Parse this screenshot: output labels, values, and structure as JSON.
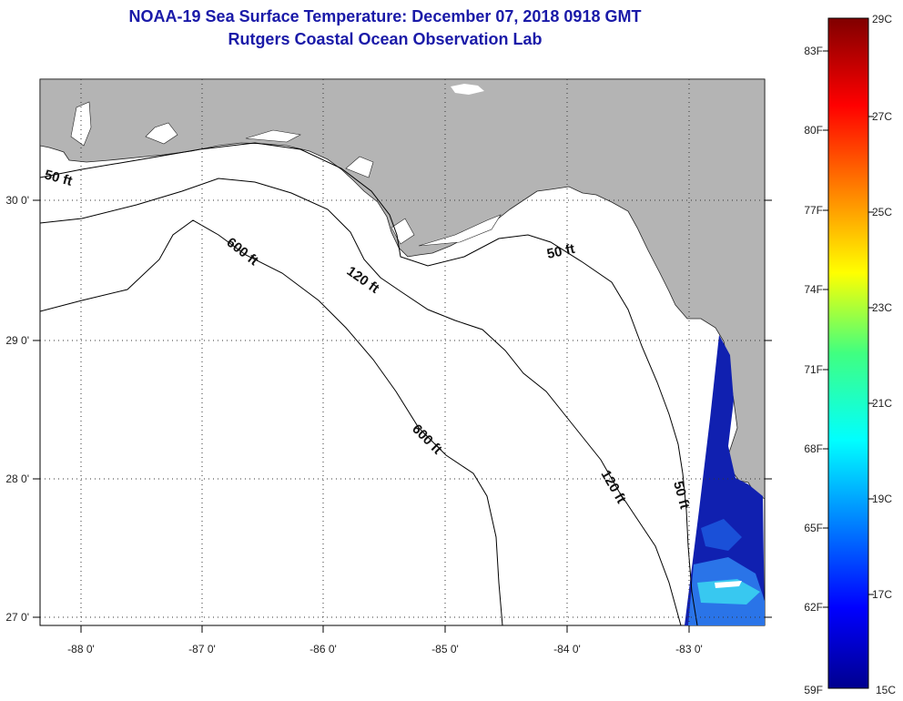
{
  "header": {
    "title": "NOAA-19 Sea Surface Temperature:  December 07, 2018 0918 GMT",
    "subtitle": "Rutgers Coastal Ocean Observation Lab"
  },
  "axes": {
    "lon_labels": [
      "-88 0'",
      "-87 0'",
      "-86 0'",
      "-85 0'",
      "-84 0'",
      "-83 0'"
    ],
    "lat_labels": [
      "30 0'",
      "29 0'",
      "28 0'",
      "27 0'"
    ]
  },
  "contours": {
    "labels": [
      "50 ft",
      "50 ft",
      "50 ft",
      "120 ft",
      "120 ft",
      "600 ft",
      "600 ft"
    ]
  },
  "colorbar": {
    "fahrenheit": [
      "83F",
      "80F",
      "77F",
      "74F",
      "71F",
      "68F",
      "65F",
      "62F",
      "59F"
    ],
    "celsius": [
      "29C",
      "27C",
      "25C",
      "23C",
      "21C",
      "19C",
      "17C",
      "15C"
    ]
  },
  "colors": {
    "title": "#1a1aa8",
    "land": "#b4b4b4",
    "sea": "#ffffff",
    "cold_sst": "#1020b0"
  }
}
